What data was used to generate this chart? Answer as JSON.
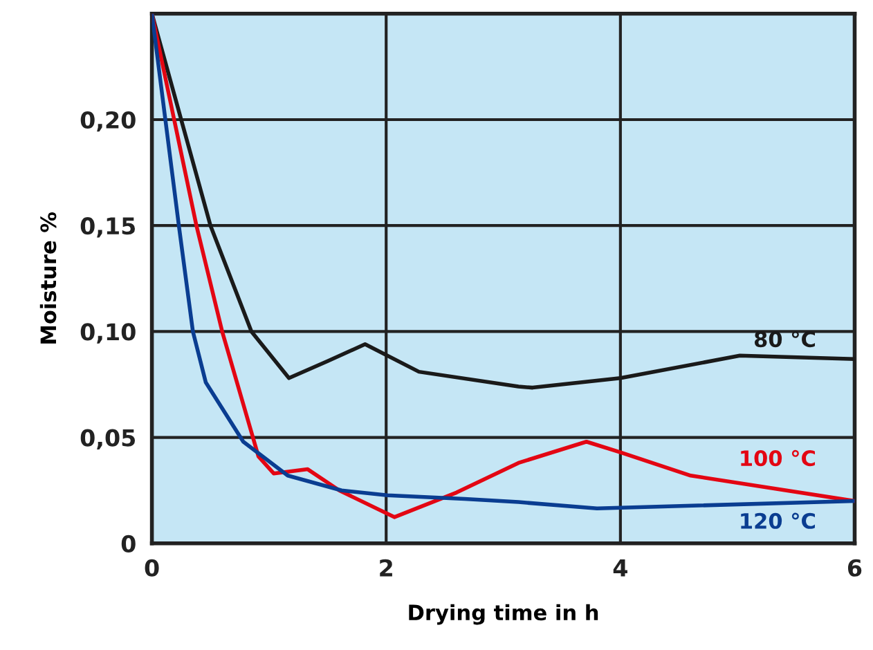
{
  "chart_data": {
    "type": "line",
    "xlabel": "Drying time in h",
    "ylabel": "Moisture %",
    "xlim": [
      0,
      6
    ],
    "xticks": [
      0,
      2,
      4,
      6
    ],
    "ylim": [
      0,
      0.25
    ],
    "yticks": [
      {
        "value": 0,
        "label": "0"
      },
      {
        "value": 0.05,
        "label": "0,05"
      },
      {
        "value": 0.1,
        "label": "0,10"
      },
      {
        "value": 0.15,
        "label": "0,15"
      },
      {
        "value": 0.2,
        "label": "0,20"
      }
    ],
    "grid": true,
    "legend": false,
    "marker": "none",
    "line_style": "solid",
    "series": [
      {
        "name": "80 °C",
        "color": "#1a1a1a",
        "x": [
          0,
          0.25,
          0.5,
          0.85,
          1.17,
          1.5,
          1.82,
          2.28,
          3.13,
          3.25,
          4,
          5.02,
          6
        ],
        "values": [
          0.25,
          0.2,
          0.15,
          0.1,
          0.078,
          0.086,
          0.094,
          0.081,
          0.074,
          0.0735,
          0.078,
          0.0886,
          0.087
        ]
      },
      {
        "name": "100 °C",
        "color": "#e30613",
        "x": [
          0,
          0.38,
          0.6,
          0.91,
          1.04,
          1.33,
          1.6,
          2.07,
          2.6,
          3.13,
          3.71,
          4,
          4.6,
          6
        ],
        "values": [
          0.25,
          0.15,
          0.1,
          0.041,
          0.033,
          0.035,
          0.025,
          0.0124,
          0.024,
          0.038,
          0.048,
          0.043,
          0.032,
          0.02
        ]
      },
      {
        "name": "120 °C",
        "color": "#0a3d91",
        "x": [
          0,
          0.23,
          0.35,
          0.46,
          0.78,
          1.16,
          1.62,
          2.01,
          2.67,
          3.13,
          3.8,
          6
        ],
        "values": [
          0.25,
          0.15,
          0.1,
          0.076,
          0.048,
          0.032,
          0.025,
          0.0227,
          0.021,
          0.0195,
          0.0165,
          0.02
        ]
      }
    ]
  }
}
